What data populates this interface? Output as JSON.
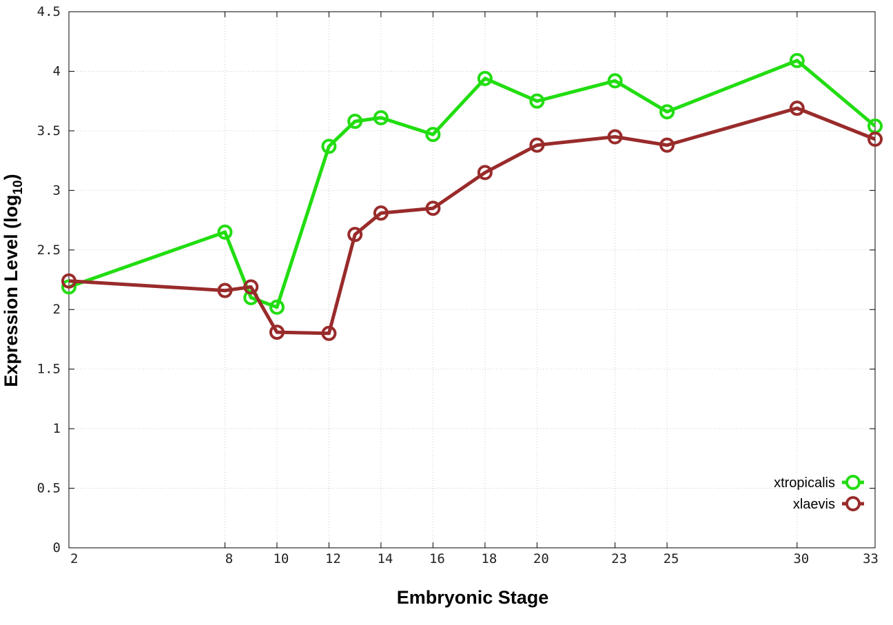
{
  "chart_data": {
    "type": "line",
    "title": "",
    "xlabel": "Embryonic Stage",
    "ylabel": "Expression Level (log",
    "ylabel_subscript": "10",
    "ylabel_suffix": ")",
    "x": [
      2,
      8,
      9,
      10,
      12,
      13,
      14,
      16,
      18,
      20,
      23,
      25,
      30,
      33
    ],
    "xtick_labels": [
      "2",
      "8",
      "10",
      "12",
      "14",
      "16",
      "18",
      "20",
      "23",
      "25",
      "30",
      "33"
    ],
    "xtick_values": [
      2,
      8,
      10,
      12,
      14,
      16,
      18,
      20,
      23,
      25,
      30,
      33
    ],
    "yticks": [
      0,
      0.5,
      1,
      1.5,
      2,
      2.5,
      3,
      3.5,
      4,
      4.5
    ],
    "ytick_labels": [
      "0",
      "0.5",
      "1",
      "1.5",
      "2",
      "2.5",
      "3",
      "3.5",
      "4",
      "4.5"
    ],
    "xlim": [
      2,
      33
    ],
    "ylim": [
      0,
      4.5
    ],
    "grid": true,
    "legend_position": "bottom-right",
    "series": [
      {
        "name": "xtropicalis",
        "color": "#22dd11",
        "values": [
          2.19,
          2.65,
          2.1,
          2.02,
          3.37,
          3.58,
          3.61,
          3.47,
          3.94,
          3.75,
          3.92,
          3.66,
          4.09,
          3.54
        ]
      },
      {
        "name": "xlaevis",
        "color": "#992b2b",
        "values": [
          2.24,
          2.16,
          2.19,
          1.81,
          1.8,
          2.63,
          2.81,
          2.85,
          3.15,
          3.38,
          3.45,
          3.38,
          3.69,
          3.43
        ]
      }
    ]
  }
}
